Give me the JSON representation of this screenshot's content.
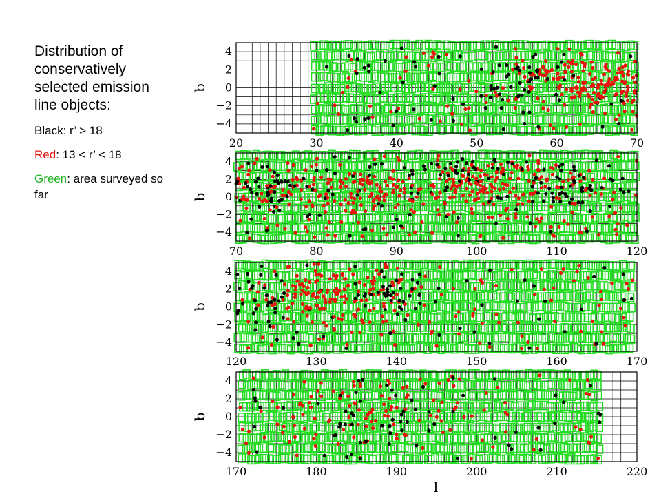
{
  "caption": {
    "title": "Distribution of conservatively selected emission line objects:",
    "legend": [
      {
        "key": "Black",
        "rest": ": r’ > 18",
        "color": "#000000"
      },
      {
        "key": "Red",
        "rest": ": 13 < r’ < 18",
        "color": "#e8140c"
      },
      {
        "key": "Green",
        "rest": ": area surveyed so far",
        "color": "#22b522"
      }
    ]
  },
  "colors": {
    "black": "#000000",
    "red": "#e8140c",
    "green": "#22dd22",
    "grid": "#000000"
  },
  "chart_data": [
    {
      "type": "scatter",
      "xlim": [
        20,
        70
      ],
      "ylim": [
        -5,
        5
      ],
      "xticks": [
        "20",
        "30",
        "40",
        "50",
        "60",
        "70"
      ],
      "yticks": [
        "−4",
        "−2",
        "0",
        "2",
        "4"
      ],
      "ylabel": "b",
      "xlabel": "",
      "grid": true,
      "survey_coverage": [
        [
          29.5,
          70
        ]
      ],
      "clusters": [
        {
          "series": "red",
          "x": 67,
          "y": 0.5,
          "sx": 2.5,
          "sy": 1.4,
          "n": 110
        },
        {
          "series": "red",
          "x": 60,
          "y": 1.0,
          "sx": 3,
          "sy": 1.4,
          "n": 60
        },
        {
          "series": "black",
          "x": 56,
          "y": 1.5,
          "sx": 3,
          "sy": 1.5,
          "n": 25
        },
        {
          "series": "black",
          "x": 52,
          "y": -0.2,
          "sx": 4,
          "sy": 1.2,
          "n": 20
        }
      ],
      "background": {
        "red": 80,
        "black": 45
      }
    },
    {
      "type": "scatter",
      "xlim": [
        70,
        120
      ],
      "ylim": [
        -5,
        5
      ],
      "xticks": [
        "70",
        "80",
        "90",
        "100",
        "110",
        "120"
      ],
      "yticks": [
        "−4",
        "−2",
        "0",
        "2",
        "4"
      ],
      "ylabel": "b",
      "xlabel": "",
      "grid": true,
      "survey_coverage": [
        [
          70,
          120
        ]
      ],
      "clusters": [
        {
          "series": "red",
          "x": 102,
          "y": 1.5,
          "sx": 5,
          "sy": 1.6,
          "n": 140
        },
        {
          "series": "red",
          "x": 87,
          "y": 0.5,
          "sx": 5,
          "sy": 1.6,
          "n": 90
        },
        {
          "series": "red",
          "x": 74,
          "y": 1.2,
          "sx": 3,
          "sy": 1.2,
          "n": 40
        },
        {
          "series": "black",
          "x": 111,
          "y": 1.5,
          "sx": 3,
          "sy": 1.4,
          "n": 40
        },
        {
          "series": "black",
          "x": 75,
          "y": 1.5,
          "sx": 3,
          "sy": 1.3,
          "n": 35
        },
        {
          "series": "black",
          "x": 96,
          "y": 2.5,
          "sx": 4,
          "sy": 1.2,
          "n": 30
        }
      ],
      "background": {
        "red": 150,
        "black": 80
      }
    },
    {
      "type": "scatter",
      "xlim": [
        120,
        170
      ],
      "ylim": [
        -5,
        5
      ],
      "xticks": [
        "120",
        "130",
        "140",
        "150",
        "160",
        "170"
      ],
      "yticks": [
        "−4",
        "−2",
        "0",
        "2",
        "4"
      ],
      "ylabel": "b",
      "xlabel": "",
      "grid": true,
      "survey_coverage": [
        [
          120,
          169.5
        ]
      ],
      "clusters": [
        {
          "series": "red",
          "x": 132,
          "y": 1.5,
          "sx": 5,
          "sy": 1.6,
          "n": 150
        },
        {
          "series": "black",
          "x": 139,
          "y": 1.2,
          "sx": 3,
          "sy": 1.0,
          "n": 30
        },
        {
          "series": "black",
          "x": 123,
          "y": 0.5,
          "sx": 2.5,
          "sy": 1.8,
          "n": 25
        }
      ],
      "background": {
        "red": 100,
        "black": 55
      }
    },
    {
      "type": "scatter",
      "xlim": [
        170,
        220
      ],
      "ylim": [
        -5,
        5
      ],
      "xticks": [
        "170",
        "180",
        "190",
        "200",
        "210",
        "220"
      ],
      "yticks": [
        "−4",
        "−2",
        "0",
        "2",
        "4"
      ],
      "ylabel": "b",
      "xlabel": "l",
      "grid": true,
      "survey_coverage": [
        [
          170.5,
          215.5
        ]
      ],
      "clusters": [
        {
          "series": "red",
          "x": 185,
          "y": 0.5,
          "sx": 9,
          "sy": 2.0,
          "n": 80
        },
        {
          "series": "black",
          "x": 185,
          "y": 0.5,
          "sx": 9,
          "sy": 2.2,
          "n": 40
        }
      ],
      "background": {
        "red": 60,
        "black": 30
      }
    }
  ]
}
